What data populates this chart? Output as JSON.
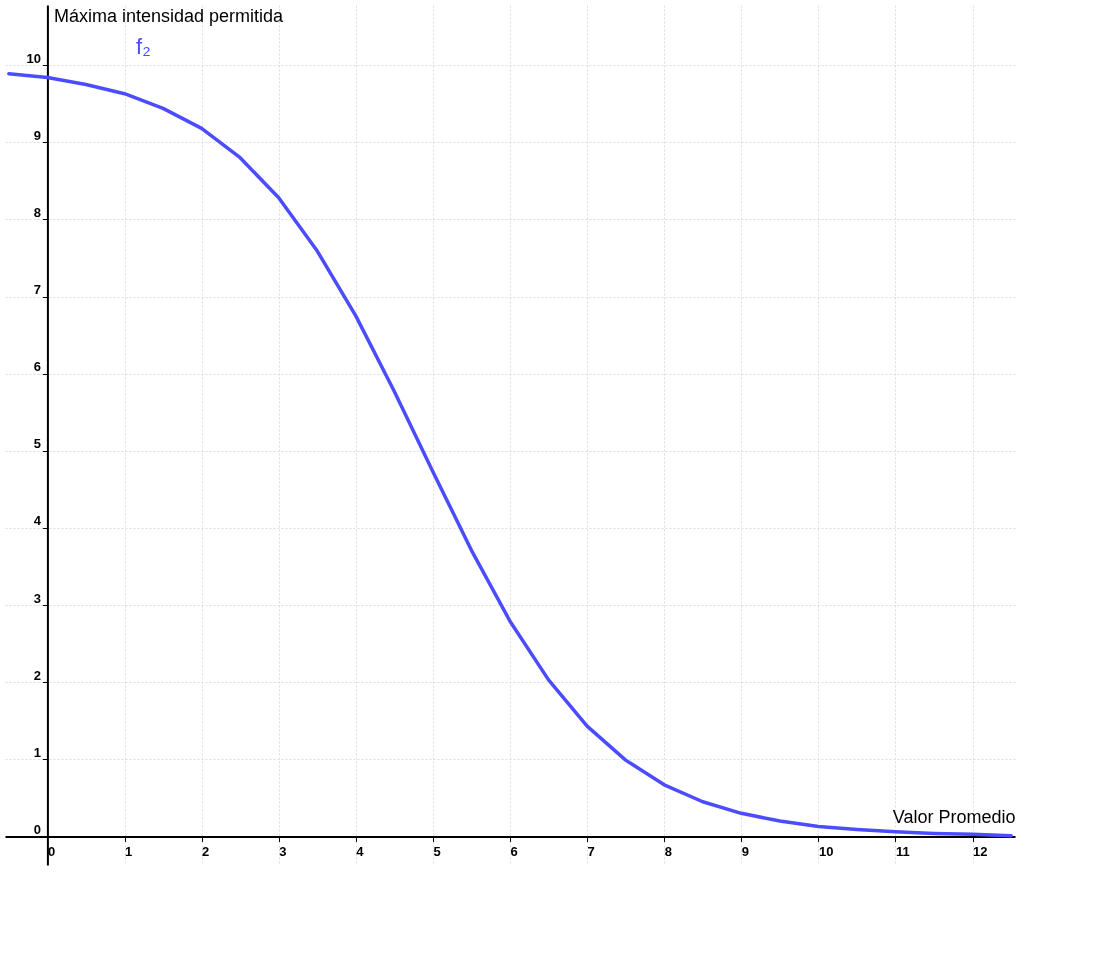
{
  "chart_data": {
    "type": "line",
    "xlabel": "Valor Promedio",
    "ylabel": "Máxima intensidad permitida",
    "xlim": [
      -0.55,
      12.55
    ],
    "ylim": [
      -0.37,
      10.78
    ],
    "xticks": [
      0,
      1,
      2,
      3,
      4,
      5,
      6,
      7,
      8,
      9,
      10,
      11,
      12
    ],
    "yticks": [
      0,
      1,
      2,
      3,
      4,
      5,
      6,
      7,
      8,
      9,
      10
    ],
    "grid": true,
    "marker": "none",
    "line_style": "solid",
    "annotations": [
      "f₂"
    ],
    "series": [
      {
        "color": "#4c4cff",
        "x": [
          -0.5,
          0,
          0.5,
          1,
          1.5,
          2,
          2.5,
          3,
          3.5,
          4,
          4.5,
          5,
          5.5,
          6,
          6.5,
          7,
          7.5,
          8,
          8.5,
          9,
          9.5,
          10,
          10.5,
          11,
          11.5,
          12,
          12.5
        ],
        "values": [
          9.89,
          9.84,
          9.75,
          9.63,
          9.44,
          9.18,
          8.8,
          8.28,
          7.59,
          6.75,
          5.77,
          4.73,
          3.71,
          2.79,
          2.03,
          1.43,
          0.99,
          0.67,
          0.45,
          0.3,
          0.2,
          0.13,
          0.09,
          0.06,
          0.04,
          0.03,
          0.01
        ]
      }
    ]
  }
}
